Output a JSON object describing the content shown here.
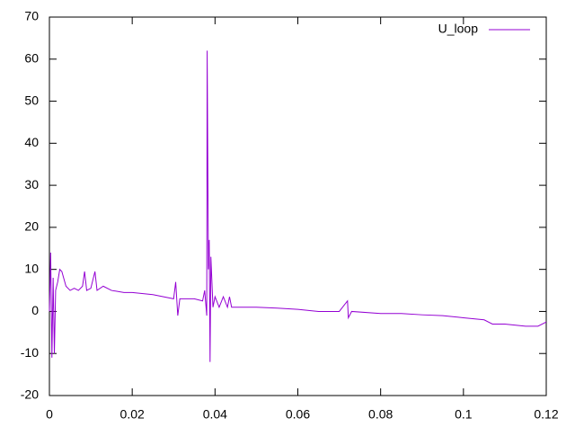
{
  "chart_data": {
    "type": "line",
    "x": [
      0,
      0.0003,
      0.0006,
      0.0009,
      0.0012,
      0.0015,
      0.002,
      0.0025,
      0.003,
      0.004,
      0.005,
      0.006,
      0.007,
      0.008,
      0.0085,
      0.009,
      0.01,
      0.011,
      0.0115,
      0.013,
      0.015,
      0.018,
      0.02,
      0.025,
      0.03,
      0.0305,
      0.031,
      0.0315,
      0.035,
      0.037,
      0.0375,
      0.038,
      0.0381,
      0.0384,
      0.0386,
      0.0388,
      0.039,
      0.0395,
      0.04,
      0.041,
      0.042,
      0.043,
      0.0435,
      0.044,
      0.05,
      0.055,
      0.06,
      0.065,
      0.07,
      0.072,
      0.0722,
      0.073,
      0.08,
      0.085,
      0.09,
      0.095,
      0.1,
      0.105,
      0.107,
      0.11,
      0.115,
      0.118,
      0.12
    ],
    "series": [
      {
        "name": "U_loop",
        "color": "#9400d3",
        "values": [
          0,
          14,
          -11,
          8,
          -10,
          5,
          7,
          10,
          9.5,
          6,
          5,
          5.5,
          5,
          6,
          9.5,
          5,
          5.5,
          9.5,
          5,
          6,
          5,
          4.5,
          4.5,
          4,
          3,
          7,
          -1,
          3,
          3,
          2.5,
          5,
          -1,
          62,
          10,
          17,
          -12,
          13,
          1,
          3.5,
          1,
          3.5,
          1,
          3.5,
          1,
          1,
          0.8,
          0.5,
          0,
          0,
          2.5,
          -1.5,
          0,
          -0.5,
          -0.5,
          -0.8,
          -1,
          -1.5,
          -2,
          -3,
          -3,
          -3.5,
          -3.5,
          -2.5
        ]
      }
    ],
    "xlim": [
      0,
      0.12
    ],
    "xticks": [
      0,
      0.02,
      0.04,
      0.06,
      0.08,
      0.1,
      0.12
    ],
    "ylim": [
      -20,
      70
    ],
    "yticks": [
      -20,
      -10,
      0,
      10,
      20,
      30,
      40,
      50,
      60,
      70
    ],
    "legend": "top-right"
  }
}
